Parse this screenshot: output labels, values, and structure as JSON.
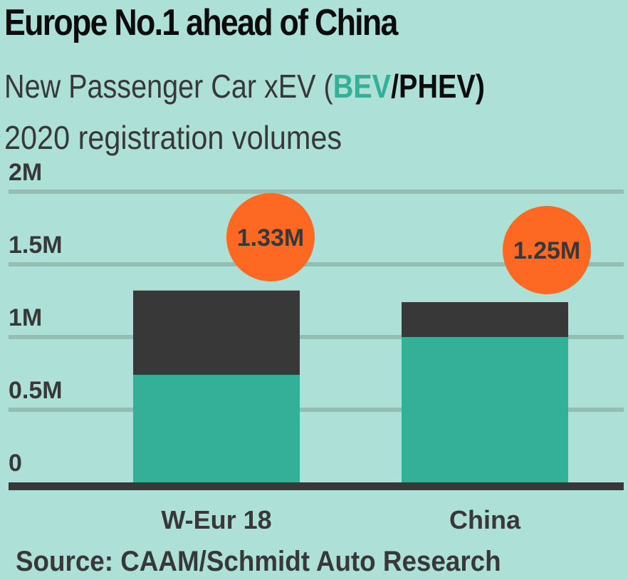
{
  "header": {
    "title": "Europe No.1 ahead of China",
    "subtitle_prefix": "New Passenger Car xEV  (",
    "subtitle_bev": "BEV",
    "subtitle_slash": "/",
    "subtitle_phev": "PHEV)",
    "subtitle_line2": "2020 registration volumes"
  },
  "colors": {
    "background": "#ade0d7",
    "bev": "#33b097",
    "phev": "#383838",
    "total_badge": "#fd6923",
    "gridline": "#94bdb4",
    "text": "#383838"
  },
  "chart_data": {
    "type": "bar",
    "stacked": true,
    "title": "Europe No.1 ahead of China",
    "subtitle": "New Passenger Car xEV (BEV/PHEV) 2020 registration volumes",
    "categories": [
      "W-Eur 18",
      "China"
    ],
    "series": [
      {
        "name": "BEV",
        "values": [
          0.74,
          1.0
        ]
      },
      {
        "name": "PHEV",
        "values": [
          0.58,
          0.24
        ]
      }
    ],
    "totals": [
      1.33,
      1.25
    ],
    "total_labels": [
      "1.33M",
      "1.25M"
    ],
    "yticks": [
      0,
      0.5,
      1,
      1.5,
      2
    ],
    "ytick_labels": [
      "0",
      "0.5M",
      "1M",
      "1.5M",
      "2M"
    ],
    "ylim": [
      0,
      2
    ],
    "xlabel": "",
    "ylabel": "",
    "grid": true,
    "legend": "in-subtitle"
  },
  "footer": {
    "source": "Source: CAAM/Schmidt Auto Research"
  }
}
